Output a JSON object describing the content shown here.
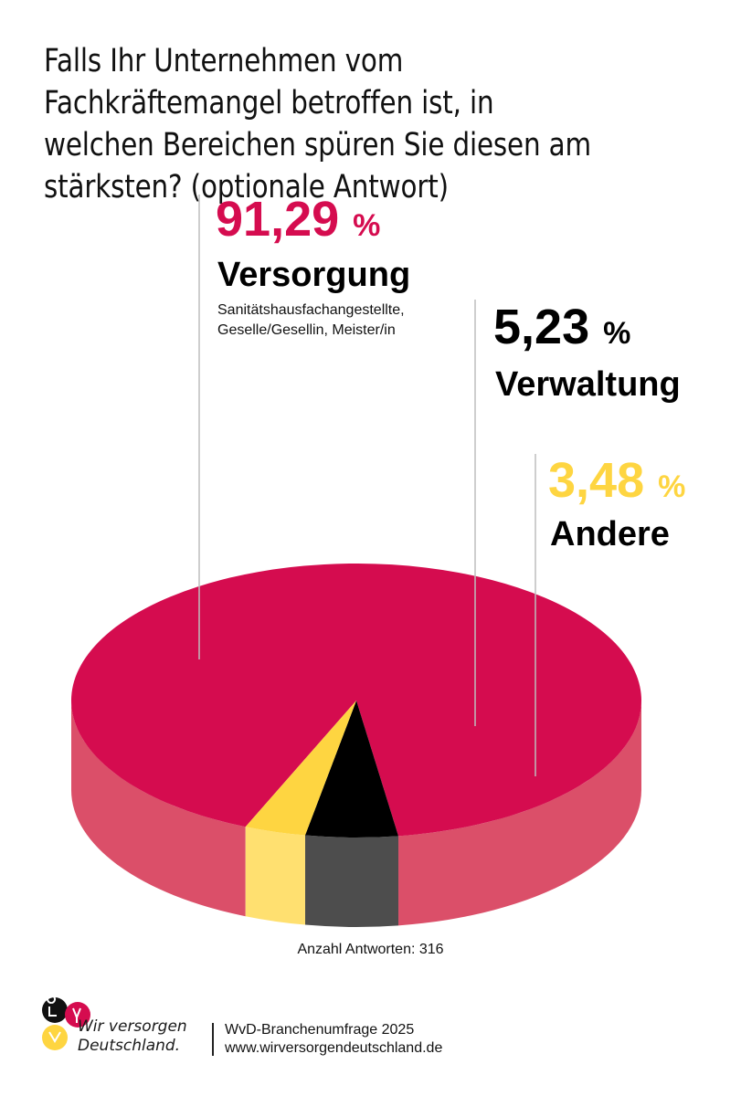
{
  "title": "Falls Ihr Unternehmen vom Fachkräftemangel betroffen ist, in welchen Bereichen spüren Sie diesen am stärksten? (optionale Antwort)",
  "chart_data": {
    "type": "pie",
    "title": "Falls Ihr Unternehmen vom Fachkräftemangel betroffen ist, in welchen Bereichen spüren Sie diesen am stärksten? (optionale Antwort)",
    "slices": [
      {
        "label": "Versorgung",
        "value": 91.29,
        "value_text": "91,29",
        "unit": "%",
        "sublabel": "Sanitätshausfachangestellte, Geselle/Gesellin, Meister/in",
        "color": "#d50c4f",
        "side_color": "#db4f69"
      },
      {
        "label": "Verwaltung",
        "value": 5.23,
        "value_text": "5,23",
        "unit": "%",
        "sublabel": "",
        "color": "#000000",
        "side_color": "#4d4d4d"
      },
      {
        "label": "Andere",
        "value": 3.48,
        "value_text": "3,48",
        "unit": "%",
        "sublabel": "",
        "color": "#fed541",
        "side_color": "#ffe070"
      }
    ],
    "style": "3d"
  },
  "footer": {
    "count_text": "Anzahl Antworten: 316",
    "logo_line1": "Wir versorgen",
    "logo_line2": "Deutschland.",
    "survey_name": "WvD-Branchenumfrage 2025",
    "website": "www.wirversorgendeutschland.de"
  },
  "colors": {
    "accent_red": "#d50c4f",
    "accent_yellow": "#fed541",
    "text_black": "#000000"
  }
}
